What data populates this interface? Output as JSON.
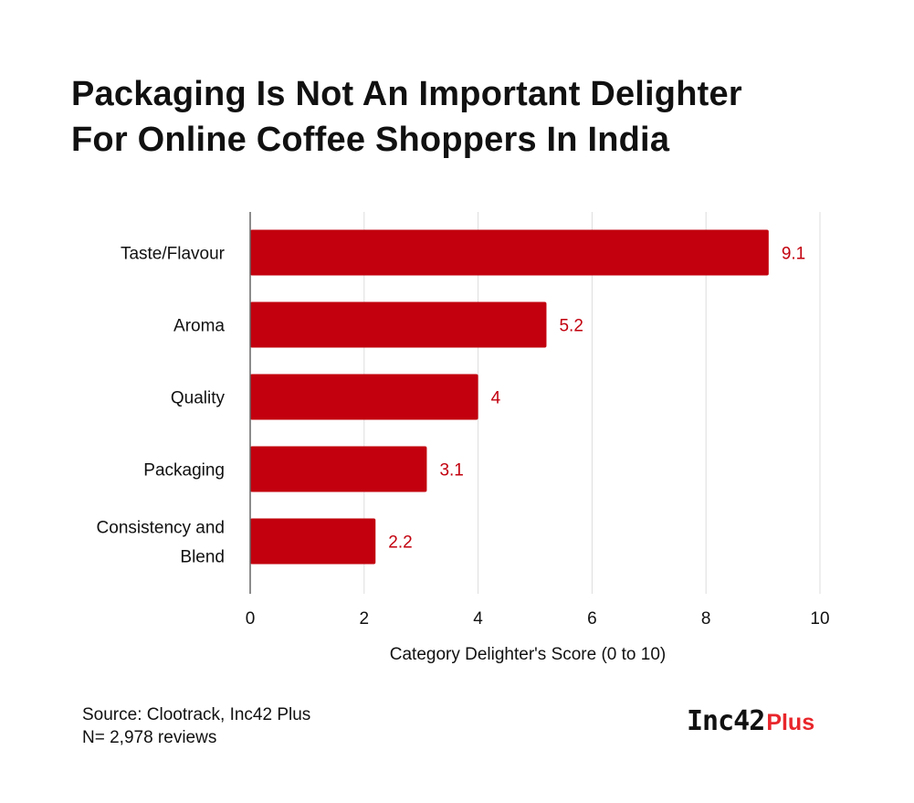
{
  "title_lines": [
    "Packaging Is Not An Important Delighter",
    "For Online Coffee Shoppers In India"
  ],
  "chart_data": {
    "type": "bar",
    "orientation": "horizontal",
    "categories": [
      [
        "Taste/Flavour"
      ],
      [
        "Aroma"
      ],
      [
        "Quality"
      ],
      [
        "Packaging"
      ],
      [
        "Consistency and",
        "Blend"
      ]
    ],
    "values": [
      9.1,
      5.2,
      4,
      3.1,
      2.2
    ],
    "value_labels": [
      "9.1",
      "5.2",
      "4",
      "3.1",
      "2.2"
    ],
    "xlim": [
      0,
      10
    ],
    "xticks": [
      0,
      2,
      4,
      6,
      8,
      10
    ],
    "xlabel": "Category Delighter's Score (0 to 10)",
    "grid": "vertical",
    "bar_color": "#c2000e",
    "label_color": "#c2000e",
    "grid_color": "#dddddd",
    "axis_color": "#666666"
  },
  "source": {
    "line1": "Source: Clootrack, Inc42 Plus",
    "line2": "N= 2,978 reviews"
  },
  "brand": {
    "main": "Inc42",
    "plus": "Plus",
    "plus_color": "#e8262b"
  }
}
